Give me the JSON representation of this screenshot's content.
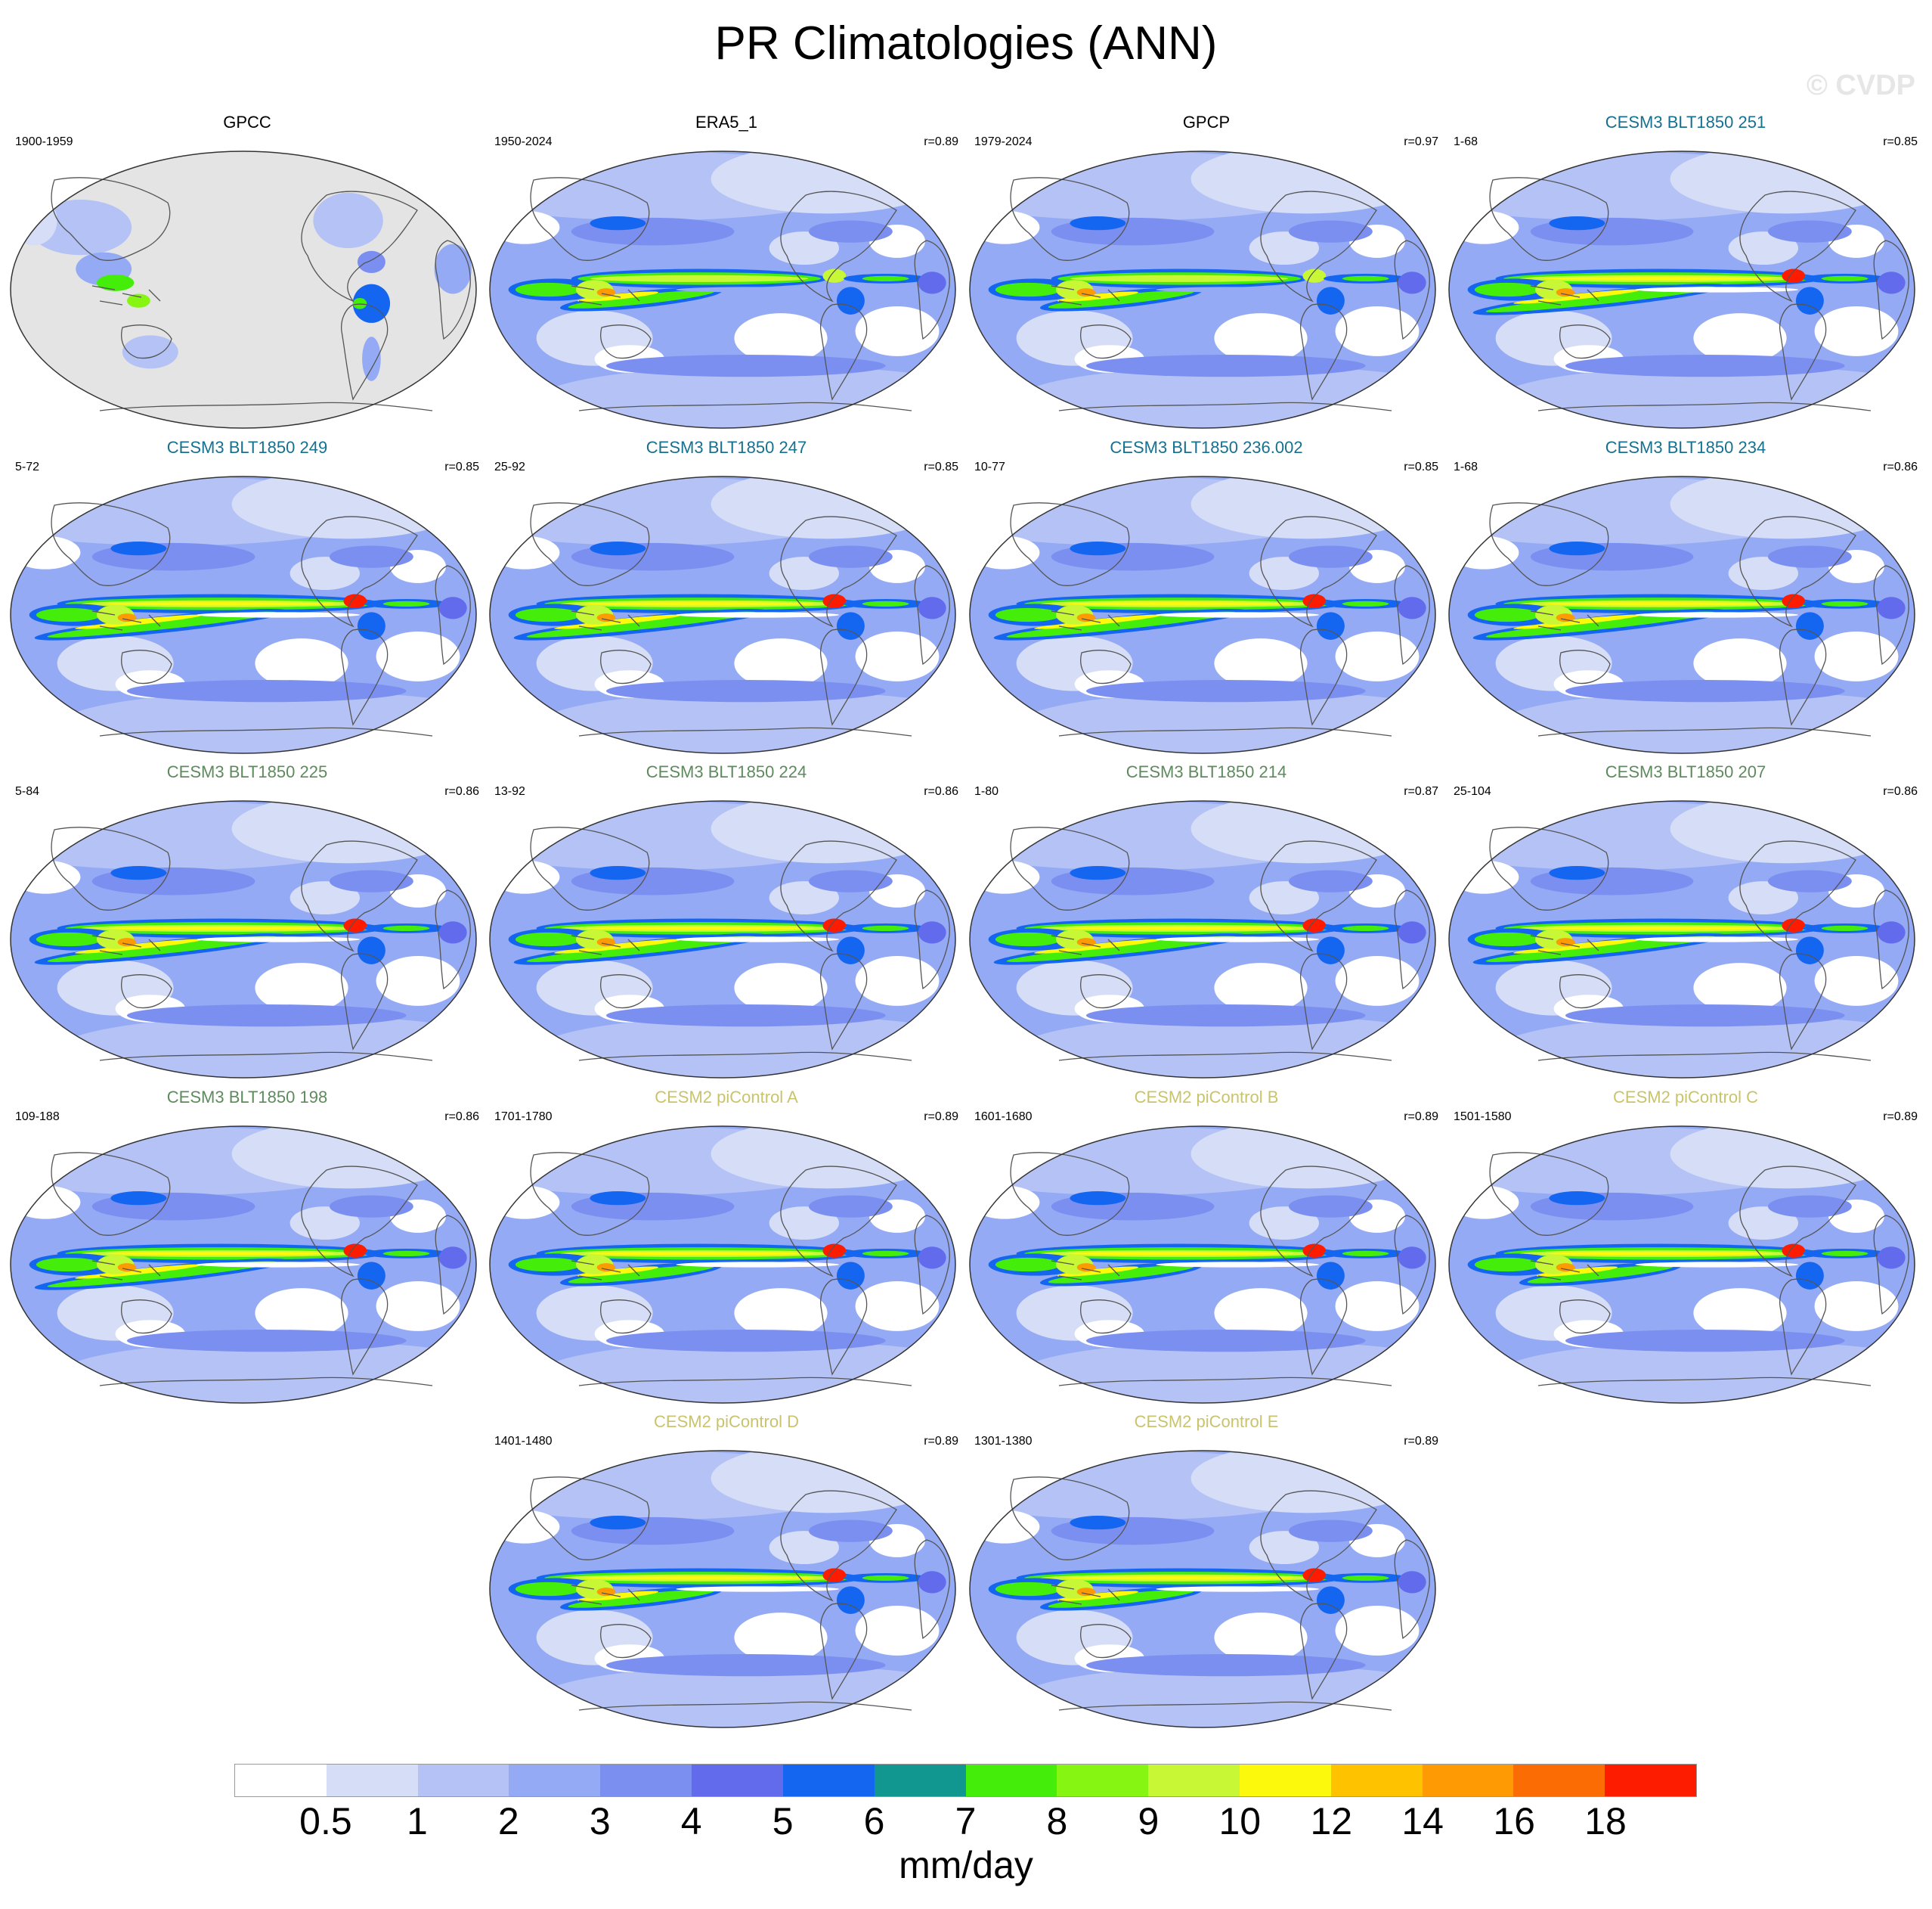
{
  "chart_data": {
    "type": "heatmap",
    "title": "PR Climatologies (ANN)",
    "watermark": "© CVDP",
    "colorbar": {
      "units": "mm/day",
      "tick_labels": [
        "0.5",
        "1",
        "2",
        "3",
        "4",
        "5",
        "6",
        "7",
        "8",
        "9",
        "10",
        "12",
        "14",
        "16",
        "18"
      ],
      "levels": [
        0.5,
        1,
        2,
        3,
        4,
        5,
        6,
        7,
        8,
        9,
        10,
        12,
        14,
        16,
        18
      ],
      "colors": [
        "#ffffff",
        "#d6ddf7",
        "#b4c2f5",
        "#94aaf4",
        "#7b8ff1",
        "#616bec",
        "#1466f0",
        "#119690",
        "#44ee0a",
        "#86f512",
        "#c7f735",
        "#fdf90d",
        "#ffc200",
        "#fe9a03",
        "#fb6c05",
        "#fd1c00"
      ]
    },
    "panels": [
      {
        "title": "GPCC",
        "period": "1900-1959",
        "r": "",
        "title_color": "#000000",
        "kind": "obs_land"
      },
      {
        "title": "ERA5_1",
        "period": "1950-2024",
        "r": "r=0.89",
        "title_color": "#000000",
        "kind": "obs"
      },
      {
        "title": "GPCP",
        "period": "1979-2024",
        "r": "r=0.97",
        "title_color": "#000000",
        "kind": "obs"
      },
      {
        "title": "CESM3 BLT1850 251",
        "period": "1-68",
        "r": "r=0.85",
        "title_color": "#15718f",
        "kind": "cesm3"
      },
      {
        "title": "CESM3 BLT1850 249",
        "period": "5-72",
        "r": "r=0.85",
        "title_color": "#15718f",
        "kind": "cesm3"
      },
      {
        "title": "CESM3 BLT1850 247",
        "period": "25-92",
        "r": "r=0.85",
        "title_color": "#15718f",
        "kind": "cesm3"
      },
      {
        "title": "CESM3 BLT1850 236.002",
        "period": "10-77",
        "r": "r=0.85",
        "title_color": "#15718f",
        "kind": "cesm3"
      },
      {
        "title": "CESM3 BLT1850 234",
        "period": "1-68",
        "r": "r=0.86",
        "title_color": "#15718f",
        "kind": "cesm3"
      },
      {
        "title": "CESM3 BLT1850 225",
        "period": "5-84",
        "r": "r=0.86",
        "title_color": "#5e8b5e",
        "kind": "cesm3"
      },
      {
        "title": "CESM3 BLT1850 224",
        "period": "13-92",
        "r": "r=0.86",
        "title_color": "#5e8b5e",
        "kind": "cesm3"
      },
      {
        "title": "CESM3 BLT1850 214",
        "period": "1-80",
        "r": "r=0.87",
        "title_color": "#5e8b5e",
        "kind": "cesm3"
      },
      {
        "title": "CESM3 BLT1850 207",
        "period": "25-104",
        "r": "r=0.86",
        "title_color": "#5e8b5e",
        "kind": "cesm3"
      },
      {
        "title": "CESM3 BLT1850 198",
        "period": "109-188",
        "r": "r=0.86",
        "title_color": "#5e8b5e",
        "kind": "cesm3"
      },
      {
        "title": "CESM2 piControl A",
        "period": "1701-1780",
        "r": "r=0.89",
        "title_color": "#c9c46c",
        "kind": "cesm2"
      },
      {
        "title": "CESM2 piControl B",
        "period": "1601-1680",
        "r": "r=0.89",
        "title_color": "#c9c46c",
        "kind": "cesm2"
      },
      {
        "title": "CESM2 piControl C",
        "period": "1501-1580",
        "r": "r=0.89",
        "title_color": "#c9c46c",
        "kind": "cesm2"
      },
      {
        "title": "CESM2 piControl D",
        "period": "1401-1480",
        "r": "r=0.89",
        "title_color": "#c9c46c",
        "kind": "cesm2"
      },
      {
        "title": "CESM2 piControl E",
        "period": "1301-1380",
        "r": "r=0.89",
        "title_color": "#c9c46c",
        "kind": "cesm2"
      }
    ]
  }
}
